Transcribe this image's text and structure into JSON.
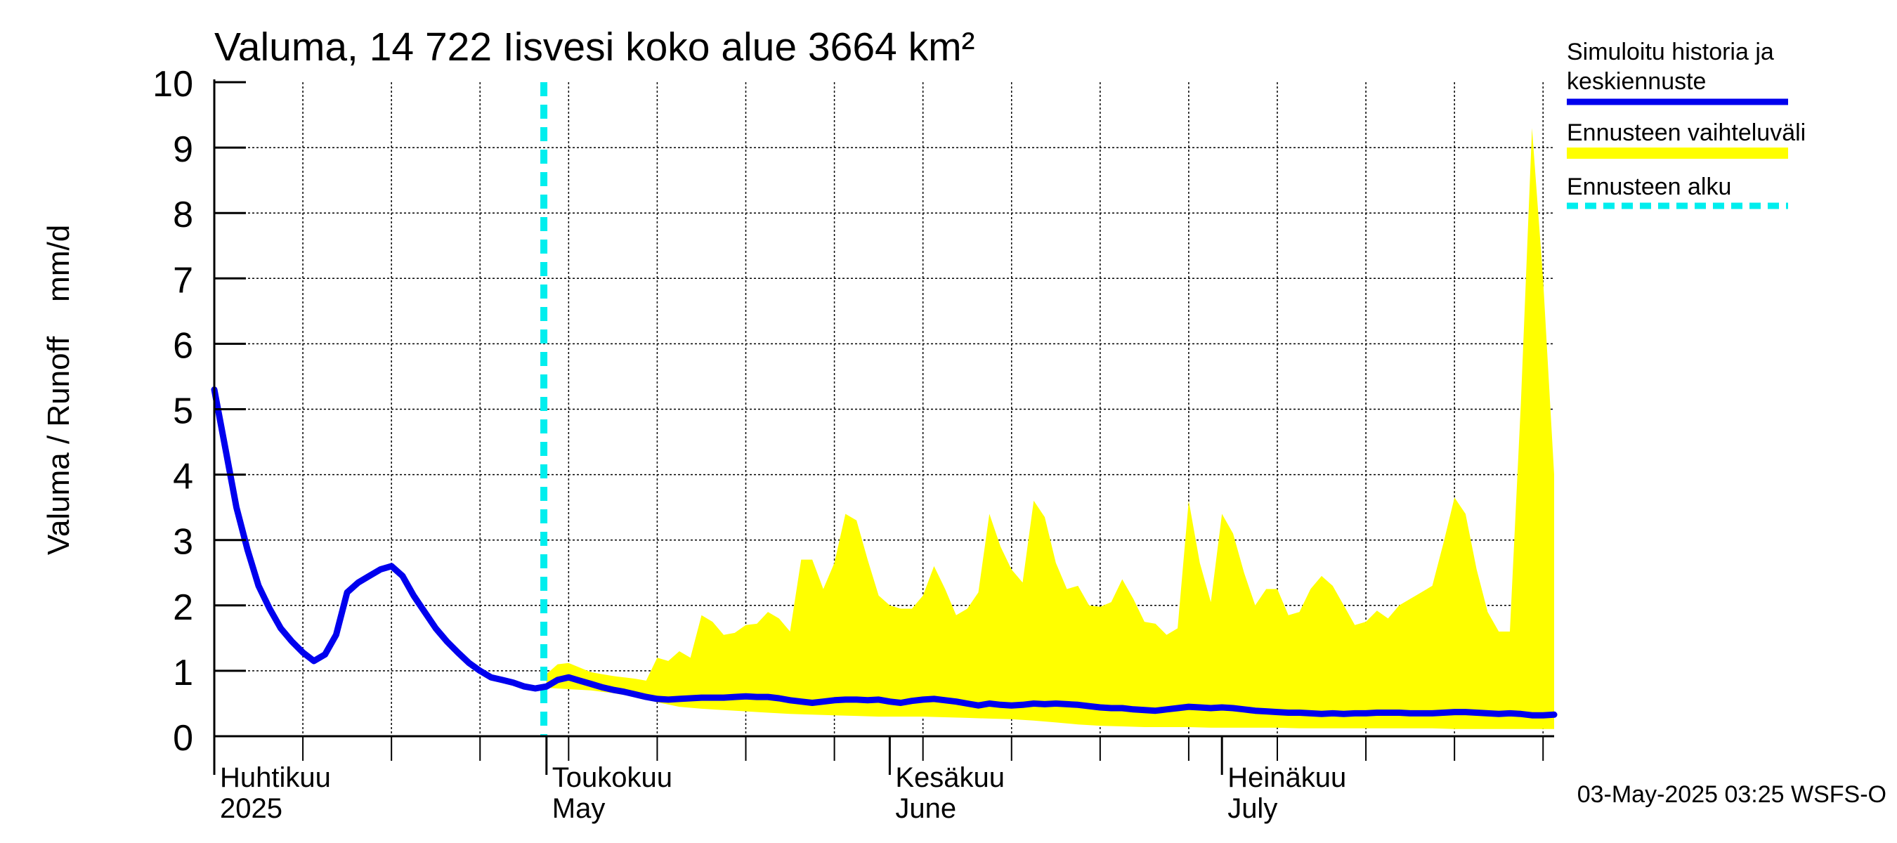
{
  "chart_data": {
    "type": "line",
    "title": "Valuma, 14 722 Iisvesi koko alue 3664 km²",
    "ylabel": "Valuma / Runoff    mm/d",
    "ylim": [
      0,
      10
    ],
    "yticks": [
      0,
      1,
      2,
      3,
      4,
      5,
      6,
      7,
      8,
      9,
      10
    ],
    "xlim": [
      "2025-04-01",
      "2025-07-31"
    ],
    "x_month_labels": [
      {
        "date": "2025-04-01",
        "fi": "Huhtikuu",
        "en": "2025"
      },
      {
        "date": "2025-05-01",
        "fi": "Toukokuu",
        "en": "May"
      },
      {
        "date": "2025-06-01",
        "fi": "Kesäkuu",
        "en": "June"
      },
      {
        "date": "2025-07-01",
        "fi": "Heinäkuu",
        "en": "July"
      }
    ],
    "grid": true,
    "legend_position": "right",
    "forecast_start": "2025-04-30",
    "footer": "03-May-2025 03:25 WSFS-O",
    "colors": {
      "history": "#0000ee",
      "range": "#ffff00",
      "forecast_start": "#00eeee"
    },
    "legend": [
      {
        "label": "Simuloitu historia ja",
        "label2": "keskiennuste",
        "style": "history"
      },
      {
        "label": "Ennusteen vaihteluväli",
        "label2": "",
        "style": "range"
      },
      {
        "label": "Ennusteen alku",
        "label2": "",
        "style": "forecast_start"
      }
    ],
    "series": [
      {
        "name": "Simuloitu historia ja keskiennuste",
        "points": [
          [
            "2025-04-01",
            5.3
          ],
          [
            "2025-04-02",
            4.4
          ],
          [
            "2025-04-03",
            3.5
          ],
          [
            "2025-04-04",
            2.85
          ],
          [
            "2025-04-05",
            2.3
          ],
          [
            "2025-04-06",
            1.95
          ],
          [
            "2025-04-07",
            1.65
          ],
          [
            "2025-04-08",
            1.45
          ],
          [
            "2025-04-09",
            1.28
          ],
          [
            "2025-04-10",
            1.15
          ],
          [
            "2025-04-11",
            1.25
          ],
          [
            "2025-04-12",
            1.55
          ],
          [
            "2025-04-13",
            2.2
          ],
          [
            "2025-04-14",
            2.35
          ],
          [
            "2025-04-15",
            2.45
          ],
          [
            "2025-04-16",
            2.55
          ],
          [
            "2025-04-17",
            2.6
          ],
          [
            "2025-04-18",
            2.45
          ],
          [
            "2025-04-19",
            2.15
          ],
          [
            "2025-04-20",
            1.9
          ],
          [
            "2025-04-21",
            1.65
          ],
          [
            "2025-04-22",
            1.45
          ],
          [
            "2025-04-23",
            1.28
          ],
          [
            "2025-04-24",
            1.12
          ],
          [
            "2025-04-25",
            1.0
          ],
          [
            "2025-04-26",
            0.9
          ],
          [
            "2025-04-27",
            0.86
          ],
          [
            "2025-04-28",
            0.82
          ],
          [
            "2025-04-29",
            0.76
          ],
          [
            "2025-04-30",
            0.73
          ],
          [
            "2025-05-01",
            0.76
          ],
          [
            "2025-05-02",
            0.86
          ],
          [
            "2025-05-03",
            0.9
          ],
          [
            "2025-05-04",
            0.85
          ],
          [
            "2025-05-05",
            0.8
          ],
          [
            "2025-05-06",
            0.75
          ],
          [
            "2025-05-07",
            0.71
          ],
          [
            "2025-05-08",
            0.68
          ],
          [
            "2025-05-09",
            0.64
          ],
          [
            "2025-05-10",
            0.6
          ],
          [
            "2025-05-11",
            0.57
          ],
          [
            "2025-05-12",
            0.56
          ],
          [
            "2025-05-13",
            0.57
          ],
          [
            "2025-05-14",
            0.58
          ],
          [
            "2025-05-15",
            0.59
          ],
          [
            "2025-05-16",
            0.59
          ],
          [
            "2025-05-17",
            0.59
          ],
          [
            "2025-05-18",
            0.6
          ],
          [
            "2025-05-19",
            0.61
          ],
          [
            "2025-05-20",
            0.6
          ],
          [
            "2025-05-21",
            0.6
          ],
          [
            "2025-05-22",
            0.58
          ],
          [
            "2025-05-23",
            0.55
          ],
          [
            "2025-05-24",
            0.53
          ],
          [
            "2025-05-25",
            0.51
          ],
          [
            "2025-05-26",
            0.53
          ],
          [
            "2025-05-27",
            0.55
          ],
          [
            "2025-05-28",
            0.56
          ],
          [
            "2025-05-29",
            0.56
          ],
          [
            "2025-05-30",
            0.55
          ],
          [
            "2025-05-31",
            0.56
          ],
          [
            "2025-06-01",
            0.53
          ],
          [
            "2025-06-02",
            0.51
          ],
          [
            "2025-06-03",
            0.54
          ],
          [
            "2025-06-04",
            0.56
          ],
          [
            "2025-06-05",
            0.57
          ],
          [
            "2025-06-06",
            0.55
          ],
          [
            "2025-06-07",
            0.53
          ],
          [
            "2025-06-08",
            0.5
          ],
          [
            "2025-06-09",
            0.47
          ],
          [
            "2025-06-10",
            0.5
          ],
          [
            "2025-06-11",
            0.48
          ],
          [
            "2025-06-12",
            0.47
          ],
          [
            "2025-06-13",
            0.48
          ],
          [
            "2025-06-14",
            0.5
          ],
          [
            "2025-06-15",
            0.49
          ],
          [
            "2025-06-16",
            0.5
          ],
          [
            "2025-06-17",
            0.49
          ],
          [
            "2025-06-18",
            0.48
          ],
          [
            "2025-06-19",
            0.46
          ],
          [
            "2025-06-20",
            0.44
          ],
          [
            "2025-06-21",
            0.43
          ],
          [
            "2025-06-22",
            0.43
          ],
          [
            "2025-06-23",
            0.41
          ],
          [
            "2025-06-24",
            0.4
          ],
          [
            "2025-06-25",
            0.39
          ],
          [
            "2025-06-26",
            0.41
          ],
          [
            "2025-06-27",
            0.43
          ],
          [
            "2025-06-28",
            0.45
          ],
          [
            "2025-06-29",
            0.44
          ],
          [
            "2025-06-30",
            0.43
          ],
          [
            "2025-07-01",
            0.44
          ],
          [
            "2025-07-02",
            0.43
          ],
          [
            "2025-07-03",
            0.41
          ],
          [
            "2025-07-04",
            0.39
          ],
          [
            "2025-07-05",
            0.38
          ],
          [
            "2025-07-06",
            0.37
          ],
          [
            "2025-07-07",
            0.36
          ],
          [
            "2025-07-08",
            0.36
          ],
          [
            "2025-07-09",
            0.35
          ],
          [
            "2025-07-10",
            0.34
          ],
          [
            "2025-07-11",
            0.35
          ],
          [
            "2025-07-12",
            0.34
          ],
          [
            "2025-07-13",
            0.35
          ],
          [
            "2025-07-14",
            0.35
          ],
          [
            "2025-07-15",
            0.36
          ],
          [
            "2025-07-16",
            0.36
          ],
          [
            "2025-07-17",
            0.36
          ],
          [
            "2025-07-18",
            0.35
          ],
          [
            "2025-07-19",
            0.35
          ],
          [
            "2025-07-20",
            0.35
          ],
          [
            "2025-07-21",
            0.36
          ],
          [
            "2025-07-22",
            0.37
          ],
          [
            "2025-07-23",
            0.37
          ],
          [
            "2025-07-24",
            0.36
          ],
          [
            "2025-07-25",
            0.35
          ],
          [
            "2025-07-26",
            0.34
          ],
          [
            "2025-07-27",
            0.35
          ],
          [
            "2025-07-28",
            0.34
          ],
          [
            "2025-07-29",
            0.32
          ],
          [
            "2025-07-30",
            0.32
          ],
          [
            "2025-07-31",
            0.33
          ]
        ]
      },
      {
        "name": "Ennusteen vaihteluväli",
        "upper": [
          [
            "2025-05-01",
            0.95
          ],
          [
            "2025-05-02",
            1.1
          ],
          [
            "2025-05-03",
            1.12
          ],
          [
            "2025-05-04",
            1.05
          ],
          [
            "2025-05-05",
            0.98
          ],
          [
            "2025-05-06",
            0.95
          ],
          [
            "2025-05-07",
            0.92
          ],
          [
            "2025-05-08",
            0.9
          ],
          [
            "2025-05-09",
            0.88
          ],
          [
            "2025-05-10",
            0.85
          ],
          [
            "2025-05-11",
            1.2
          ],
          [
            "2025-05-12",
            1.15
          ],
          [
            "2025-05-13",
            1.3
          ],
          [
            "2025-05-14",
            1.2
          ],
          [
            "2025-05-15",
            1.85
          ],
          [
            "2025-05-16",
            1.75
          ],
          [
            "2025-05-17",
            1.55
          ],
          [
            "2025-05-18",
            1.58
          ],
          [
            "2025-05-19",
            1.7
          ],
          [
            "2025-05-20",
            1.72
          ],
          [
            "2025-05-21",
            1.9
          ],
          [
            "2025-05-22",
            1.8
          ],
          [
            "2025-05-23",
            1.6
          ],
          [
            "2025-05-24",
            2.7
          ],
          [
            "2025-05-25",
            2.7
          ],
          [
            "2025-05-26",
            2.25
          ],
          [
            "2025-05-27",
            2.65
          ],
          [
            "2025-05-28",
            3.4
          ],
          [
            "2025-05-29",
            3.3
          ],
          [
            "2025-05-30",
            2.7
          ],
          [
            "2025-05-31",
            2.15
          ],
          [
            "2025-06-01",
            2.0
          ],
          [
            "2025-06-02",
            1.95
          ],
          [
            "2025-06-03",
            1.95
          ],
          [
            "2025-06-04",
            2.15
          ],
          [
            "2025-06-05",
            2.6
          ],
          [
            "2025-06-06",
            2.25
          ],
          [
            "2025-06-07",
            1.85
          ],
          [
            "2025-06-08",
            1.95
          ],
          [
            "2025-06-09",
            2.2
          ],
          [
            "2025-06-10",
            3.4
          ],
          [
            "2025-06-11",
            2.9
          ],
          [
            "2025-06-12",
            2.55
          ],
          [
            "2025-06-13",
            2.35
          ],
          [
            "2025-06-14",
            3.6
          ],
          [
            "2025-06-15",
            3.35
          ],
          [
            "2025-06-16",
            2.65
          ],
          [
            "2025-06-17",
            2.25
          ],
          [
            "2025-06-18",
            2.3
          ],
          [
            "2025-06-19",
            2.0
          ],
          [
            "2025-06-20",
            1.98
          ],
          [
            "2025-06-21",
            2.05
          ],
          [
            "2025-06-22",
            2.4
          ],
          [
            "2025-06-23",
            2.1
          ],
          [
            "2025-06-24",
            1.75
          ],
          [
            "2025-06-25",
            1.72
          ],
          [
            "2025-06-26",
            1.55
          ],
          [
            "2025-06-27",
            1.65
          ],
          [
            "2025-06-28",
            3.6
          ],
          [
            "2025-06-29",
            2.65
          ],
          [
            "2025-06-30",
            2.05
          ],
          [
            "2025-07-01",
            3.4
          ],
          [
            "2025-07-02",
            3.1
          ],
          [
            "2025-07-03",
            2.5
          ],
          [
            "2025-07-04",
            2.0
          ],
          [
            "2025-07-05",
            2.25
          ],
          [
            "2025-07-06",
            2.25
          ],
          [
            "2025-07-07",
            1.85
          ],
          [
            "2025-07-08",
            1.9
          ],
          [
            "2025-07-09",
            2.25
          ],
          [
            "2025-07-10",
            2.45
          ],
          [
            "2025-07-11",
            2.3
          ],
          [
            "2025-07-12",
            2.0
          ],
          [
            "2025-07-13",
            1.7
          ],
          [
            "2025-07-14",
            1.75
          ],
          [
            "2025-07-15",
            1.92
          ],
          [
            "2025-07-16",
            1.8
          ],
          [
            "2025-07-17",
            2.0
          ],
          [
            "2025-07-18",
            2.1
          ],
          [
            "2025-07-19",
            2.2
          ],
          [
            "2025-07-20",
            2.3
          ],
          [
            "2025-07-21",
            2.95
          ],
          [
            "2025-07-22",
            3.65
          ],
          [
            "2025-07-23",
            3.4
          ],
          [
            "2025-07-24",
            2.55
          ],
          [
            "2025-07-25",
            1.9
          ],
          [
            "2025-07-26",
            1.6
          ],
          [
            "2025-07-27",
            1.6
          ],
          [
            "2025-07-28",
            5.1
          ],
          [
            "2025-07-29",
            9.3
          ],
          [
            "2025-07-30",
            7.0
          ],
          [
            "2025-07-31",
            4.0
          ]
        ],
        "lower": [
          [
            "2025-05-01",
            0.74
          ],
          [
            "2025-05-03",
            0.72
          ],
          [
            "2025-05-05",
            0.7
          ],
          [
            "2025-05-07",
            0.66
          ],
          [
            "2025-05-09",
            0.6
          ],
          [
            "2025-05-11",
            0.52
          ],
          [
            "2025-05-13",
            0.45
          ],
          [
            "2025-05-15",
            0.42
          ],
          [
            "2025-05-17",
            0.4
          ],
          [
            "2025-05-19",
            0.38
          ],
          [
            "2025-05-21",
            0.36
          ],
          [
            "2025-05-23",
            0.34
          ],
          [
            "2025-05-25",
            0.33
          ],
          [
            "2025-05-27",
            0.32
          ],
          [
            "2025-05-29",
            0.31
          ],
          [
            "2025-05-31",
            0.3
          ],
          [
            "2025-06-02",
            0.3
          ],
          [
            "2025-06-04",
            0.3
          ],
          [
            "2025-06-06",
            0.29
          ],
          [
            "2025-06-08",
            0.28
          ],
          [
            "2025-06-10",
            0.27
          ],
          [
            "2025-06-12",
            0.26
          ],
          [
            "2025-06-14",
            0.24
          ],
          [
            "2025-06-16",
            0.21
          ],
          [
            "2025-06-18",
            0.18
          ],
          [
            "2025-06-20",
            0.16
          ],
          [
            "2025-06-22",
            0.15
          ],
          [
            "2025-06-24",
            0.14
          ],
          [
            "2025-06-26",
            0.14
          ],
          [
            "2025-06-28",
            0.14
          ],
          [
            "2025-06-30",
            0.13
          ],
          [
            "2025-07-02",
            0.13
          ],
          [
            "2025-07-04",
            0.13
          ],
          [
            "2025-07-06",
            0.13
          ],
          [
            "2025-07-08",
            0.12
          ],
          [
            "2025-07-10",
            0.12
          ],
          [
            "2025-07-12",
            0.12
          ],
          [
            "2025-07-14",
            0.12
          ],
          [
            "2025-07-16",
            0.12
          ],
          [
            "2025-07-18",
            0.12
          ],
          [
            "2025-07-20",
            0.12
          ],
          [
            "2025-07-22",
            0.11
          ],
          [
            "2025-07-24",
            0.11
          ],
          [
            "2025-07-26",
            0.11
          ],
          [
            "2025-07-28",
            0.11
          ],
          [
            "2025-07-31",
            0.11
          ]
        ]
      }
    ]
  }
}
